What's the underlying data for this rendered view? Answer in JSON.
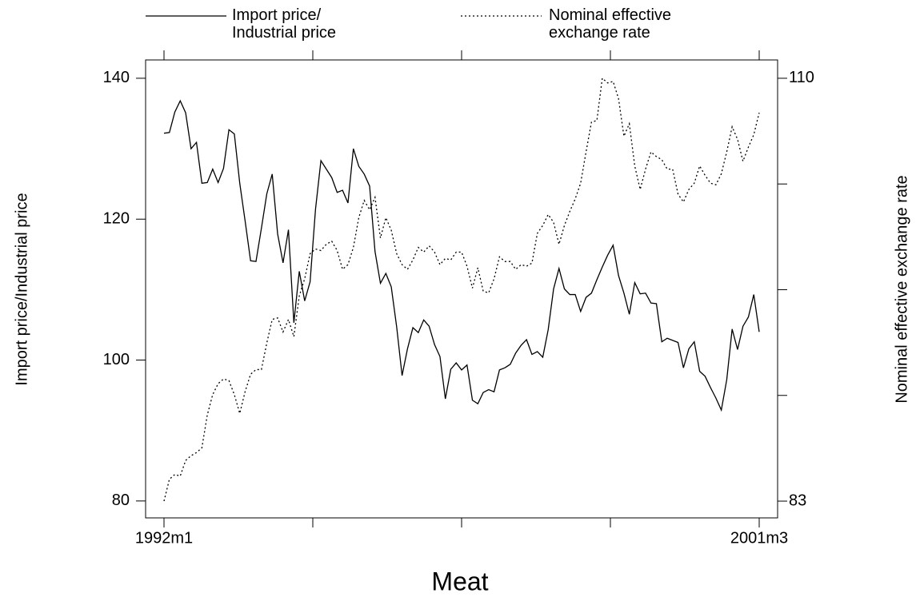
{
  "chart_data": {
    "type": "line",
    "title": "Meat",
    "ylabel": "Import price/Industrial price",
    "y2label": "Nominal effective exchange rate",
    "categories": [
      "1992m1",
      null,
      null,
      null,
      null,
      null,
      null,
      null,
      null,
      null,
      null,
      null,
      null,
      null,
      null,
      null,
      null,
      null,
      null,
      null,
      null,
      null,
      null,
      null,
      null,
      null,
      null,
      null,
      null,
      null,
      null,
      null,
      null,
      null,
      null,
      null,
      null,
      null,
      null,
      null,
      null,
      null,
      null,
      null,
      null,
      null,
      null,
      null,
      null,
      null,
      null,
      null,
      null,
      null,
      null,
      null,
      null,
      null,
      null,
      null,
      null,
      null,
      null,
      null,
      null,
      null,
      null,
      null,
      null,
      null,
      null,
      null,
      null,
      null,
      null,
      null,
      null,
      null,
      null,
      null,
      null,
      null,
      null,
      null,
      null,
      null,
      null,
      null,
      null,
      null,
      null,
      null,
      null,
      null,
      null,
      null,
      null,
      null,
      null,
      null,
      null,
      null,
      null,
      null,
      null,
      null,
      null,
      null,
      null,
      null,
      "2001m3"
    ],
    "ylim": [
      77.6,
      142.6
    ],
    "yticks": [
      80,
      100,
      120,
      140
    ],
    "y2lim": [
      81.93,
      111.17
    ],
    "y2ticks": [
      83,
      110
    ],
    "series": [
      {
        "name": "Import price/\nIndustrial price",
        "color": "#000000",
        "dash": "solid",
        "values": [
          132.2,
          132.3,
          135.2,
          136.8,
          135.1,
          130,
          130.9,
          125.1,
          125.2,
          127.1,
          125.2,
          127.2,
          132.7,
          132.1,
          125.1,
          119.7,
          114.1,
          114,
          118.7,
          123.6,
          126.4,
          117.9,
          113.8,
          118.5,
          105.3,
          112.6,
          108.4,
          111.1,
          121.4,
          128.3,
          127.1,
          125.9,
          123.8,
          124.1,
          122.3,
          130,
          127.5,
          126.4,
          124.7,
          115.4,
          110.9,
          112.3,
          110.4,
          104.7,
          97.8,
          101.6,
          104.6,
          103.9,
          105.7,
          104.8,
          102.2,
          100.5,
          94.5,
          98.7,
          99.6,
          98.6,
          99.3,
          94.3,
          93.8,
          95.4,
          95.8,
          95.5,
          98.6,
          98.9,
          99.4,
          101,
          102.1,
          102.9,
          100.8,
          101.2,
          100.4,
          104.3,
          110.1,
          113,
          110.1,
          109.3,
          109.3,
          106.9,
          108.9,
          109.5,
          111.4,
          113.2,
          114.9,
          116.3,
          112,
          109.5,
          106.5,
          111,
          109.4,
          109.5,
          108.1,
          108,
          102.6,
          103.1,
          102.8,
          102.5,
          98.9,
          101.6,
          102.6,
          98.4,
          97.7,
          96.1,
          94.6,
          92.9,
          97.2,
          104.4,
          101.5,
          104.8,
          106.1,
          109.3,
          104
        ]
      },
      {
        "name": "Nominal effective\nexchange rate",
        "color": "#000000",
        "dash": "dotted",
        "axis": "y2",
        "values": [
          83,
          84.4,
          84.7,
          84.6,
          85.6,
          85.9,
          86.1,
          86.4,
          88.5,
          89.8,
          90.5,
          90.8,
          90.7,
          89.8,
          88.6,
          90,
          91.1,
          91.4,
          91.4,
          93.1,
          94.6,
          94.7,
          93.8,
          94.6,
          93.5,
          96.1,
          97.2,
          98.8,
          99.1,
          99,
          99.4,
          99.6,
          99,
          97.8,
          98.1,
          99.2,
          101.1,
          102.2,
          101.6,
          102.4,
          99.8,
          101.1,
          100.3,
          98.8,
          98.1,
          97.8,
          98.4,
          99.2,
          98.9,
          99.3,
          98.9,
          98.1,
          98.5,
          98.4,
          98.9,
          98.9,
          98,
          96.6,
          97.9,
          96.4,
          96.3,
          97.2,
          98.6,
          98.3,
          98.3,
          97.8,
          98.1,
          98,
          98.2,
          100.1,
          100.6,
          101.3,
          100.8,
          99.4,
          100.6,
          101.5,
          102.3,
          103.3,
          105.3,
          107.2,
          107.3,
          110,
          109.7,
          109.8,
          108.7,
          106.3,
          107.1,
          104.4,
          102.9,
          104.2,
          105.3,
          105,
          104.8,
          104.2,
          104.2,
          102.6,
          102.1,
          102.9,
          103.3,
          104.4,
          103.8,
          103.3,
          103.2,
          103.9,
          105.3,
          106.9,
          106.1,
          104.7,
          105.6,
          106.4,
          107.8
        ]
      }
    ]
  }
}
